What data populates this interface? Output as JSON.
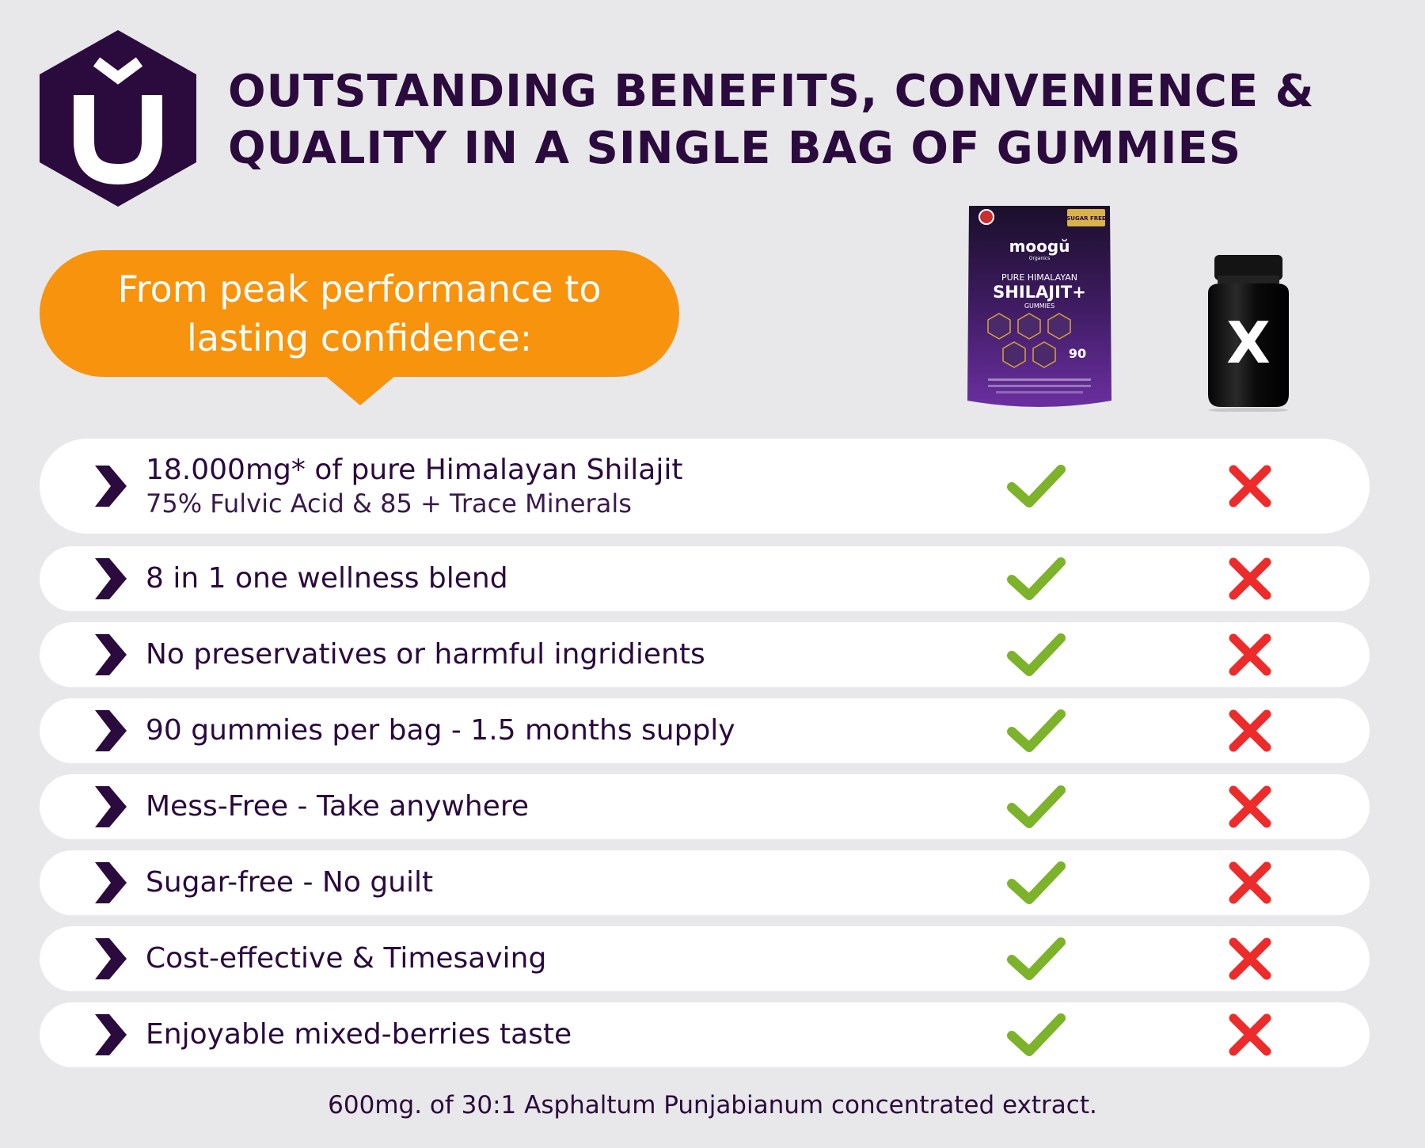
{
  "headline": {
    "line1": "OUTSTANDING BENEFITS, CONVENIENCE &",
    "line2": "QUALITY IN A SINGLE BAG OF GUMMIES"
  },
  "bubble": {
    "text": "From peak performance to lasting confidence:"
  },
  "product": {
    "brand": "moogŭ",
    "brand_sub": "Organics",
    "line1": "PURE HIMALAYAN",
    "line2": "SHILAJIT+",
    "line3": "GUMMIES",
    "count": "90",
    "sugar_badge": "SUGAR FREE"
  },
  "competitor": {
    "mark": "X"
  },
  "rows": [
    {
      "title": "18.000mg* of pure Himalayan Shilajit",
      "subtitle": "75% Fulvic Acid & 85 + Trace Minerals",
      "ours": true,
      "theirs": false
    },
    {
      "title": "8 in 1 one wellness blend",
      "ours": true,
      "theirs": false
    },
    {
      "title": "No preservatives or harmful ingridients",
      "ours": true,
      "theirs": false
    },
    {
      "title": "90 gummies per bag - 1.5 months supply",
      "ours": true,
      "theirs": false
    },
    {
      "title": "Mess-Free - Take anywhere",
      "ours": true,
      "theirs": false
    },
    {
      "title": "Sugar-free - No guilt",
      "ours": true,
      "theirs": false
    },
    {
      "title": "Cost-effective & Timesaving",
      "ours": true,
      "theirs": false
    },
    {
      "title": "Enjoyable mixed-berries taste",
      "ours": true,
      "theirs": false
    }
  ],
  "footnote": "600mg. of 30:1 Asphaltum Punjabianum concentrated extract.",
  "colors": {
    "brand_purple": "#2b0a3d",
    "accent_orange": "#f7930d",
    "check_green": "#7cb32a",
    "cross_red": "#ee2b2b",
    "background": "#e8e7ea"
  },
  "icons": {
    "logo": "brand-u-hexagon-icon",
    "bullet": "chevron-right-icon",
    "yes": "checkmark-icon",
    "no": "cross-icon"
  }
}
